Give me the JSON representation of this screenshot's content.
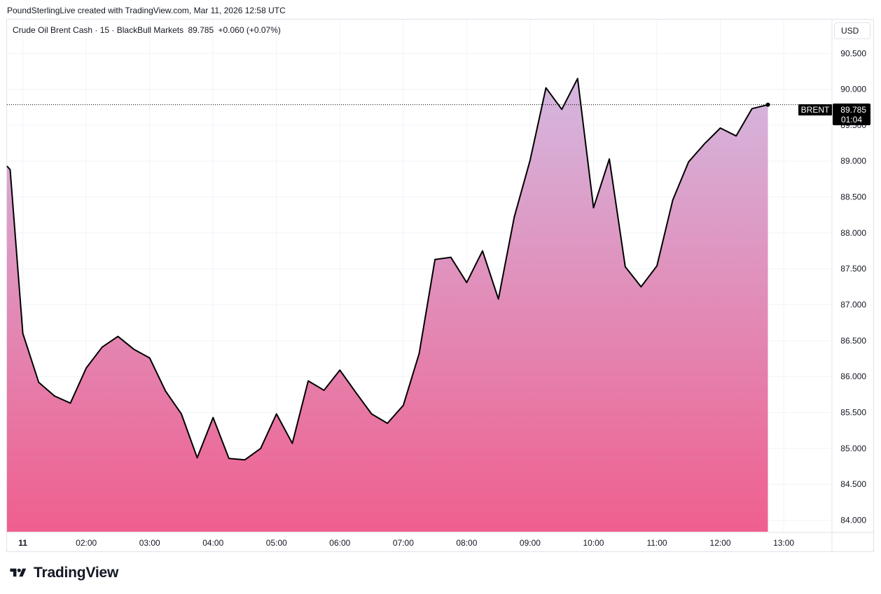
{
  "attribution": "PoundSterlingLive created with TradingView.com, Mar 11, 2026 12:58 UTC",
  "legend": {
    "symbol": "Crude Oil Brent Cash · 15 · BlackBull Markets",
    "price": "89.785",
    "change": "+0.060 (+0.07%)"
  },
  "currency": "USD",
  "price_tag": {
    "label": "BRENT",
    "price": "89.785",
    "countdown": "01:04"
  },
  "brand": "TradingView",
  "colors": {
    "line": "#000000",
    "fill_top": "#d4b8e0",
    "fill_bottom": "#ef5f8e",
    "grid": "#f0f3fa"
  },
  "chart_data": {
    "type": "area",
    "ylim": [
      83.84,
      90.97
    ],
    "y_ticks": [
      "84.000",
      "84.500",
      "85.000",
      "85.500",
      "86.000",
      "86.500",
      "87.000",
      "87.500",
      "88.000",
      "88.500",
      "89.000",
      "89.500",
      "90.000",
      "90.500"
    ],
    "x_ticks": [
      {
        "label": "11",
        "t": 1.0
      },
      {
        "label": "02:00",
        "t": 2.0
      },
      {
        "label": "03:00",
        "t": 3.0
      },
      {
        "label": "04:00",
        "t": 4.0
      },
      {
        "label": "05:00",
        "t": 5.0
      },
      {
        "label": "06:00",
        "t": 6.0
      },
      {
        "label": "07:00",
        "t": 7.0
      },
      {
        "label": "08:00",
        "t": 8.0
      },
      {
        "label": "09:00",
        "t": 9.0
      },
      {
        "label": "10:00",
        "t": 10.0
      },
      {
        "label": "11:00",
        "t": 11.0
      },
      {
        "label": "12:00",
        "t": 12.0
      },
      {
        "label": "13:00",
        "t": 13.0
      }
    ],
    "x_range": [
      0.75,
      13.75
    ],
    "series": [
      {
        "values": [
          [
            0.75,
            88.93
          ],
          [
            0.8,
            88.88
          ],
          [
            1.0,
            86.6
          ],
          [
            1.25,
            85.92
          ],
          [
            1.5,
            85.73
          ],
          [
            1.75,
            85.63
          ],
          [
            2.0,
            86.12
          ],
          [
            2.25,
            86.41
          ],
          [
            2.5,
            86.56
          ],
          [
            2.75,
            86.38
          ],
          [
            3.0,
            86.26
          ],
          [
            3.25,
            85.8
          ],
          [
            3.5,
            85.48
          ],
          [
            3.75,
            84.87
          ],
          [
            4.0,
            85.43
          ],
          [
            4.25,
            84.86
          ],
          [
            4.5,
            84.84
          ],
          [
            4.75,
            85.0
          ],
          [
            5.0,
            85.48
          ],
          [
            5.25,
            85.07
          ],
          [
            5.5,
            85.94
          ],
          [
            5.75,
            85.81
          ],
          [
            6.0,
            86.09
          ],
          [
            6.25,
            85.78
          ],
          [
            6.5,
            85.48
          ],
          [
            6.75,
            85.35
          ],
          [
            7.0,
            85.6
          ],
          [
            7.25,
            86.32
          ],
          [
            7.5,
            87.63
          ],
          [
            7.75,
            87.66
          ],
          [
            8.0,
            87.31
          ],
          [
            8.25,
            87.75
          ],
          [
            8.5,
            87.08
          ],
          [
            8.75,
            88.22
          ],
          [
            9.0,
            89.01
          ],
          [
            9.25,
            90.02
          ],
          [
            9.5,
            89.72
          ],
          [
            9.75,
            90.15
          ],
          [
            10.0,
            88.35
          ],
          [
            10.25,
            89.03
          ],
          [
            10.5,
            87.53
          ],
          [
            10.75,
            87.25
          ],
          [
            11.0,
            87.54
          ],
          [
            11.25,
            88.46
          ],
          [
            11.5,
            88.99
          ],
          [
            11.75,
            89.24
          ],
          [
            12.0,
            89.46
          ],
          [
            12.25,
            89.35
          ],
          [
            12.5,
            89.73
          ],
          [
            12.75,
            89.785
          ]
        ]
      }
    ]
  }
}
